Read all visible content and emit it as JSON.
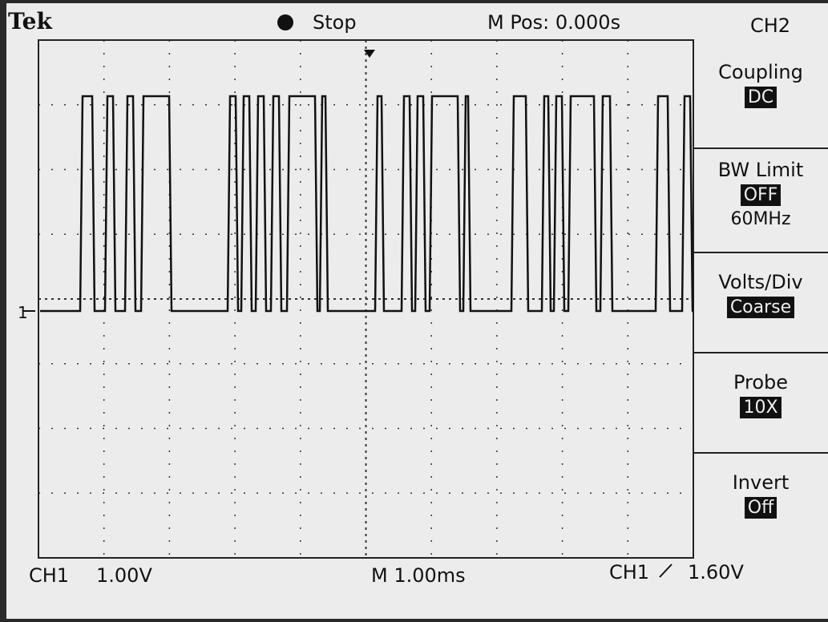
{
  "header": {
    "brand": "Tek",
    "state": "Stop",
    "position": "M Pos: 0.000s",
    "channel": "CH2"
  },
  "menu": [
    {
      "label": "Coupling",
      "value": "DC"
    },
    {
      "label": "BW Limit",
      "value": "OFF",
      "note": "60MHz"
    },
    {
      "label": "Volts/Div",
      "value": "Coarse"
    },
    {
      "label": "Probe",
      "value": "10X"
    },
    {
      "label": "Invert",
      "value": "Off"
    }
  ],
  "marker": "1",
  "footer": {
    "ch1": "CH1",
    "ch1_scale": "1.00V",
    "timebase": "M 1.00ms",
    "trigger_source": "CH1",
    "trigger_level": "1.60V"
  }
}
